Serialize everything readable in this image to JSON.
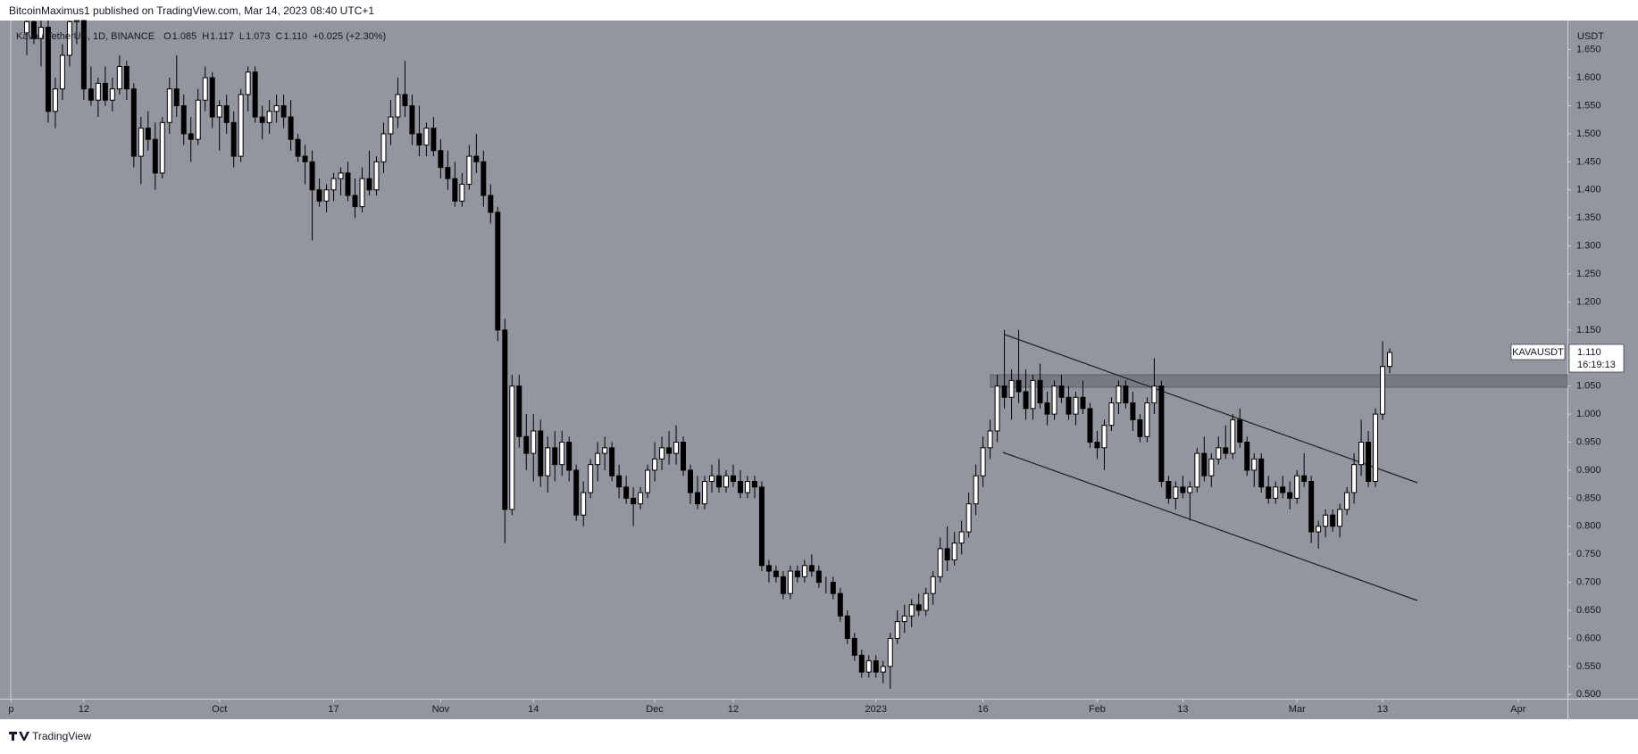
{
  "header": {
    "text": "BitcoinMaximus1 published on TradingView.com, Mar 14, 2023 08:40 UTC+1"
  },
  "footer": {
    "brand": "TradingView"
  },
  "chart_data": {
    "type": "candlestick",
    "legend": {
      "symbol": "Kava / TetherUS, 1D, BINANCE",
      "open_key": "O",
      "open": "1.085",
      "high_key": "H",
      "high": "1.117",
      "low_key": "L",
      "low": "1.073",
      "close_key": "C",
      "close": "1.110",
      "change": "+0.025 (+2.30%)"
    },
    "y_axis_unit": "USDT",
    "last_price": {
      "symbol": "KAVAUSDT",
      "price": {
        "value": 1.11,
        "label": "1.110"
      },
      "countdown": "16:19:13"
    },
    "colors": {
      "up": "#ffffff",
      "down": "#000000",
      "background": "#94969f"
    },
    "xlim": [
      -2.25,
      215.9
    ],
    "xticks": [
      {
        "value": -2.2,
        "label": "p"
      },
      {
        "value": 8,
        "label": "12"
      },
      {
        "value": 27,
        "label": "Oct"
      },
      {
        "value": 43,
        "label": "17"
      },
      {
        "value": 58,
        "label": "Nov"
      },
      {
        "value": 71,
        "label": "14"
      },
      {
        "value": 88,
        "label": "Dec"
      },
      {
        "value": 99,
        "label": "12"
      },
      {
        "value": 119,
        "label": "2023"
      },
      {
        "value": 134,
        "label": "16"
      },
      {
        "value": 150,
        "label": "Feb"
      },
      {
        "value": 162,
        "label": "13"
      },
      {
        "value": 178,
        "label": "Mar"
      },
      {
        "value": 190,
        "label": "13"
      },
      {
        "value": 209,
        "label": "Apr"
      }
    ],
    "ylim": [
      0.4925,
      1.702
    ],
    "yticks": [
      {
        "value": 0.5,
        "label": "0.500"
      },
      {
        "value": 0.55,
        "label": "0.550"
      },
      {
        "value": 0.6,
        "label": "0.600"
      },
      {
        "value": 0.65,
        "label": "0.650"
      },
      {
        "value": 0.7,
        "label": "0.700"
      },
      {
        "value": 0.75,
        "label": "0.750"
      },
      {
        "value": 0.8,
        "label": "0.800"
      },
      {
        "value": 0.85,
        "label": "0.850"
      },
      {
        "value": 0.9,
        "label": "0.900"
      },
      {
        "value": 0.95,
        "label": "0.950"
      },
      {
        "value": 1.0,
        "label": "1.000"
      },
      {
        "value": 1.05,
        "label": "1.050"
      },
      {
        "value": 1.1,
        "label": "1.100"
      },
      {
        "value": 1.15,
        "label": "1.150"
      },
      {
        "value": 1.2,
        "label": "1.200"
      },
      {
        "value": 1.25,
        "label": "1.250"
      },
      {
        "value": 1.3,
        "label": "1.300"
      },
      {
        "value": 1.35,
        "label": "1.350"
      },
      {
        "value": 1.4,
        "label": "1.400"
      },
      {
        "value": 1.45,
        "label": "1.450"
      },
      {
        "value": 1.5,
        "label": "1.500"
      },
      {
        "value": 1.55,
        "label": "1.550"
      },
      {
        "value": 1.6,
        "label": "1.600"
      },
      {
        "value": 1.65,
        "label": "1.650"
      }
    ],
    "candles": [
      [
        1.68,
        1.72,
        1.64,
        1.7
      ],
      [
        1.7,
        1.74,
        1.66,
        1.67
      ],
      [
        1.67,
        1.71,
        1.62,
        1.69
      ],
      [
        1.69,
        1.72,
        1.52,
        1.54
      ],
      [
        1.54,
        1.6,
        1.51,
        1.58
      ],
      [
        1.58,
        1.66,
        1.56,
        1.64
      ],
      [
        1.64,
        1.71,
        1.62,
        1.7
      ],
      [
        1.7,
        1.74,
        1.66,
        1.72
      ],
      [
        1.72,
        1.73,
        1.56,
        1.58
      ],
      [
        1.58,
        1.62,
        1.55,
        1.56
      ],
      [
        1.56,
        1.6,
        1.53,
        1.59
      ],
      [
        1.59,
        1.62,
        1.55,
        1.56
      ],
      [
        1.56,
        1.6,
        1.54,
        1.58
      ],
      [
        1.58,
        1.64,
        1.57,
        1.62
      ],
      [
        1.62,
        1.63,
        1.56,
        1.58
      ],
      [
        1.58,
        1.59,
        1.44,
        1.46
      ],
      [
        1.46,
        1.53,
        1.41,
        1.51
      ],
      [
        1.51,
        1.54,
        1.47,
        1.49
      ],
      [
        1.49,
        1.52,
        1.4,
        1.43
      ],
      [
        1.43,
        1.53,
        1.42,
        1.52
      ],
      [
        1.52,
        1.6,
        1.5,
        1.58
      ],
      [
        1.58,
        1.64,
        1.53,
        1.55
      ],
      [
        1.55,
        1.57,
        1.48,
        1.5
      ],
      [
        1.5,
        1.53,
        1.45,
        1.49
      ],
      [
        1.49,
        1.58,
        1.48,
        1.56
      ],
      [
        1.56,
        1.62,
        1.54,
        1.6
      ],
      [
        1.6,
        1.61,
        1.51,
        1.53
      ],
      [
        1.53,
        1.56,
        1.47,
        1.55
      ],
      [
        1.55,
        1.57,
        1.5,
        1.52
      ],
      [
        1.52,
        1.54,
        1.44,
        1.46
      ],
      [
        1.46,
        1.58,
        1.45,
        1.57
      ],
      [
        1.57,
        1.62,
        1.54,
        1.61
      ],
      [
        1.61,
        1.62,
        1.52,
        1.53
      ],
      [
        1.53,
        1.55,
        1.49,
        1.52
      ],
      [
        1.52,
        1.56,
        1.5,
        1.54
      ],
      [
        1.54,
        1.57,
        1.52,
        1.55
      ],
      [
        1.55,
        1.57,
        1.51,
        1.53
      ],
      [
        1.53,
        1.56,
        1.47,
        1.49
      ],
      [
        1.49,
        1.5,
        1.45,
        1.46
      ],
      [
        1.46,
        1.48,
        1.41,
        1.45
      ],
      [
        1.45,
        1.47,
        1.31,
        1.4
      ],
      [
        1.4,
        1.42,
        1.37,
        1.38
      ],
      [
        1.38,
        1.41,
        1.36,
        1.4
      ],
      [
        1.4,
        1.43,
        1.38,
        1.42
      ],
      [
        1.42,
        1.44,
        1.39,
        1.43
      ],
      [
        1.43,
        1.45,
        1.38,
        1.39
      ],
      [
        1.39,
        1.42,
        1.35,
        1.37
      ],
      [
        1.37,
        1.44,
        1.36,
        1.42
      ],
      [
        1.42,
        1.47,
        1.39,
        1.4
      ],
      [
        1.4,
        1.46,
        1.39,
        1.45
      ],
      [
        1.45,
        1.52,
        1.43,
        1.5
      ],
      [
        1.5,
        1.56,
        1.48,
        1.53
      ],
      [
        1.53,
        1.6,
        1.51,
        1.57
      ],
      [
        1.57,
        1.63,
        1.53,
        1.55
      ],
      [
        1.55,
        1.57,
        1.48,
        1.5
      ],
      [
        1.5,
        1.55,
        1.46,
        1.48
      ],
      [
        1.48,
        1.52,
        1.46,
        1.51
      ],
      [
        1.51,
        1.53,
        1.46,
        1.47
      ],
      [
        1.47,
        1.49,
        1.42,
        1.44
      ],
      [
        1.44,
        1.47,
        1.4,
        1.42
      ],
      [
        1.42,
        1.45,
        1.37,
        1.38
      ],
      [
        1.38,
        1.43,
        1.37,
        1.41
      ],
      [
        1.41,
        1.48,
        1.4,
        1.46
      ],
      [
        1.46,
        1.5,
        1.43,
        1.45
      ],
      [
        1.45,
        1.47,
        1.37,
        1.39
      ],
      [
        1.39,
        1.41,
        1.34,
        1.36
      ],
      [
        1.36,
        1.37,
        1.13,
        1.15
      ],
      [
        1.15,
        1.17,
        0.77,
        0.83
      ],
      [
        0.83,
        1.07,
        0.82,
        1.05
      ],
      [
        1.05,
        1.07,
        0.94,
        0.96
      ],
      [
        0.96,
        1.0,
        0.9,
        0.93
      ],
      [
        0.93,
        1.0,
        0.88,
        0.97
      ],
      [
        0.97,
        0.99,
        0.87,
        0.89
      ],
      [
        0.89,
        0.96,
        0.86,
        0.94
      ],
      [
        0.94,
        0.97,
        0.88,
        0.91
      ],
      [
        0.91,
        0.97,
        0.89,
        0.95
      ],
      [
        0.95,
        0.96,
        0.88,
        0.9
      ],
      [
        0.9,
        0.91,
        0.81,
        0.82
      ],
      [
        0.82,
        0.88,
        0.8,
        0.86
      ],
      [
        0.86,
        0.92,
        0.85,
        0.91
      ],
      [
        0.91,
        0.95,
        0.88,
        0.93
      ],
      [
        0.93,
        0.96,
        0.9,
        0.94
      ],
      [
        0.94,
        0.95,
        0.88,
        0.89
      ],
      [
        0.89,
        0.91,
        0.85,
        0.87
      ],
      [
        0.87,
        0.89,
        0.84,
        0.85
      ],
      [
        0.85,
        0.87,
        0.8,
        0.84
      ],
      [
        0.84,
        0.87,
        0.83,
        0.86
      ],
      [
        0.86,
        0.91,
        0.85,
        0.9
      ],
      [
        0.9,
        0.95,
        0.88,
        0.92
      ],
      [
        0.92,
        0.96,
        0.9,
        0.94
      ],
      [
        0.94,
        0.97,
        0.91,
        0.93
      ],
      [
        0.93,
        0.98,
        0.91,
        0.95
      ],
      [
        0.95,
        0.96,
        0.89,
        0.9
      ],
      [
        0.9,
        0.91,
        0.84,
        0.86
      ],
      [
        0.86,
        0.89,
        0.83,
        0.84
      ],
      [
        0.84,
        0.89,
        0.83,
        0.88
      ],
      [
        0.88,
        0.91,
        0.86,
        0.89
      ],
      [
        0.89,
        0.92,
        0.86,
        0.87
      ],
      [
        0.87,
        0.9,
        0.86,
        0.89
      ],
      [
        0.89,
        0.91,
        0.87,
        0.88
      ],
      [
        0.88,
        0.9,
        0.85,
        0.86
      ],
      [
        0.86,
        0.89,
        0.85,
        0.88
      ],
      [
        0.88,
        0.89,
        0.85,
        0.87
      ],
      [
        0.87,
        0.88,
        0.72,
        0.73
      ],
      [
        0.73,
        0.74,
        0.7,
        0.72
      ],
      [
        0.72,
        0.73,
        0.7,
        0.71
      ],
      [
        0.71,
        0.72,
        0.67,
        0.68
      ],
      [
        0.68,
        0.73,
        0.67,
        0.72
      ],
      [
        0.72,
        0.73,
        0.7,
        0.71
      ],
      [
        0.71,
        0.74,
        0.7,
        0.73
      ],
      [
        0.73,
        0.75,
        0.71,
        0.72
      ],
      [
        0.72,
        0.73,
        0.69,
        0.7
      ],
      [
        0.7,
        0.71,
        0.68,
        0.7
      ],
      [
        0.7,
        0.71,
        0.67,
        0.68
      ],
      [
        0.68,
        0.69,
        0.63,
        0.64
      ],
      [
        0.64,
        0.65,
        0.59,
        0.6
      ],
      [
        0.6,
        0.61,
        0.56,
        0.57
      ],
      [
        0.57,
        0.58,
        0.53,
        0.54
      ],
      [
        0.54,
        0.57,
        0.53,
        0.56
      ],
      [
        0.56,
        0.57,
        0.53,
        0.54
      ],
      [
        0.54,
        0.56,
        0.52,
        0.55
      ],
      [
        0.55,
        0.61,
        0.51,
        0.6
      ],
      [
        0.6,
        0.65,
        0.59,
        0.63
      ],
      [
        0.63,
        0.66,
        0.61,
        0.64
      ],
      [
        0.64,
        0.67,
        0.62,
        0.66
      ],
      [
        0.66,
        0.68,
        0.64,
        0.65
      ],
      [
        0.65,
        0.69,
        0.64,
        0.68
      ],
      [
        0.68,
        0.72,
        0.66,
        0.71
      ],
      [
        0.71,
        0.78,
        0.7,
        0.76
      ],
      [
        0.76,
        0.8,
        0.72,
        0.74
      ],
      [
        0.74,
        0.79,
        0.73,
        0.77
      ],
      [
        0.77,
        0.81,
        0.75,
        0.79
      ],
      [
        0.79,
        0.86,
        0.78,
        0.84
      ],
      [
        0.84,
        0.91,
        0.82,
        0.89
      ],
      [
        0.89,
        0.96,
        0.87,
        0.94
      ],
      [
        0.94,
        0.99,
        0.92,
        0.97
      ],
      [
        0.97,
        1.07,
        0.95,
        1.05
      ],
      [
        1.05,
        1.15,
        1.01,
        1.03
      ],
      [
        1.03,
        1.08,
        0.99,
        1.06
      ],
      [
        1.06,
        1.15,
        1.02,
        1.04
      ],
      [
        1.04,
        1.08,
        0.99,
        1.01
      ],
      [
        1.01,
        1.07,
        0.99,
        1.06
      ],
      [
        1.06,
        1.09,
        1.01,
        1.02
      ],
      [
        1.02,
        1.04,
        0.98,
        1.0
      ],
      [
        1.0,
        1.06,
        0.99,
        1.05
      ],
      [
        1.05,
        1.07,
        1.02,
        1.03
      ],
      [
        1.03,
        1.05,
        0.99,
        1.0
      ],
      [
        1.0,
        1.04,
        0.98,
        1.03
      ],
      [
        1.03,
        1.06,
        1.0,
        1.01
      ],
      [
        1.01,
        1.02,
        0.94,
        0.95
      ],
      [
        0.95,
        0.97,
        0.92,
        0.94
      ],
      [
        0.94,
        0.99,
        0.9,
        0.98
      ],
      [
        0.98,
        1.03,
        0.97,
        1.02
      ],
      [
        1.02,
        1.06,
        1.0,
        1.05
      ],
      [
        1.05,
        1.06,
        1.01,
        1.02
      ],
      [
        1.02,
        1.04,
        0.97,
        0.99
      ],
      [
        0.99,
        1.0,
        0.95,
        0.96
      ],
      [
        0.96,
        1.03,
        0.95,
        1.02
      ],
      [
        1.02,
        1.1,
        1.0,
        1.05
      ],
      [
        1.05,
        1.06,
        0.87,
        0.88
      ],
      [
        0.88,
        0.89,
        0.84,
        0.85
      ],
      [
        0.85,
        0.88,
        0.83,
        0.87
      ],
      [
        0.87,
        0.89,
        0.85,
        0.86
      ],
      [
        0.86,
        0.88,
        0.81,
        0.87
      ],
      [
        0.87,
        0.94,
        0.86,
        0.93
      ],
      [
        0.93,
        0.96,
        0.88,
        0.89
      ],
      [
        0.89,
        0.93,
        0.87,
        0.92
      ],
      [
        0.92,
        0.96,
        0.91,
        0.94
      ],
      [
        0.94,
        0.98,
        0.92,
        0.93
      ],
      [
        0.93,
        1.0,
        0.92,
        0.99
      ],
      [
        0.99,
        1.01,
        0.94,
        0.95
      ],
      [
        0.95,
        0.96,
        0.89,
        0.9
      ],
      [
        0.9,
        0.93,
        0.87,
        0.92
      ],
      [
        0.92,
        0.93,
        0.86,
        0.87
      ],
      [
        0.87,
        0.89,
        0.84,
        0.85
      ],
      [
        0.85,
        0.88,
        0.84,
        0.87
      ],
      [
        0.87,
        0.89,
        0.85,
        0.86
      ],
      [
        0.86,
        0.88,
        0.83,
        0.85
      ],
      [
        0.85,
        0.9,
        0.84,
        0.89
      ],
      [
        0.89,
        0.93,
        0.87,
        0.88
      ],
      [
        0.88,
        0.89,
        0.77,
        0.79
      ],
      [
        0.79,
        0.81,
        0.76,
        0.8
      ],
      [
        0.8,
        0.83,
        0.78,
        0.82
      ],
      [
        0.82,
        0.83,
        0.79,
        0.8
      ],
      [
        0.8,
        0.84,
        0.78,
        0.83
      ],
      [
        0.83,
        0.87,
        0.82,
        0.86
      ],
      [
        0.86,
        0.93,
        0.84,
        0.91
      ],
      [
        0.91,
        0.99,
        0.89,
        0.95
      ],
      [
        0.95,
        0.97,
        0.87,
        0.88
      ],
      [
        0.88,
        1.01,
        0.87,
        1.0
      ],
      [
        1.0,
        1.13,
        0.99,
        1.085
      ],
      [
        1.085,
        1.117,
        1.073,
        1.11
      ]
    ]
  }
}
